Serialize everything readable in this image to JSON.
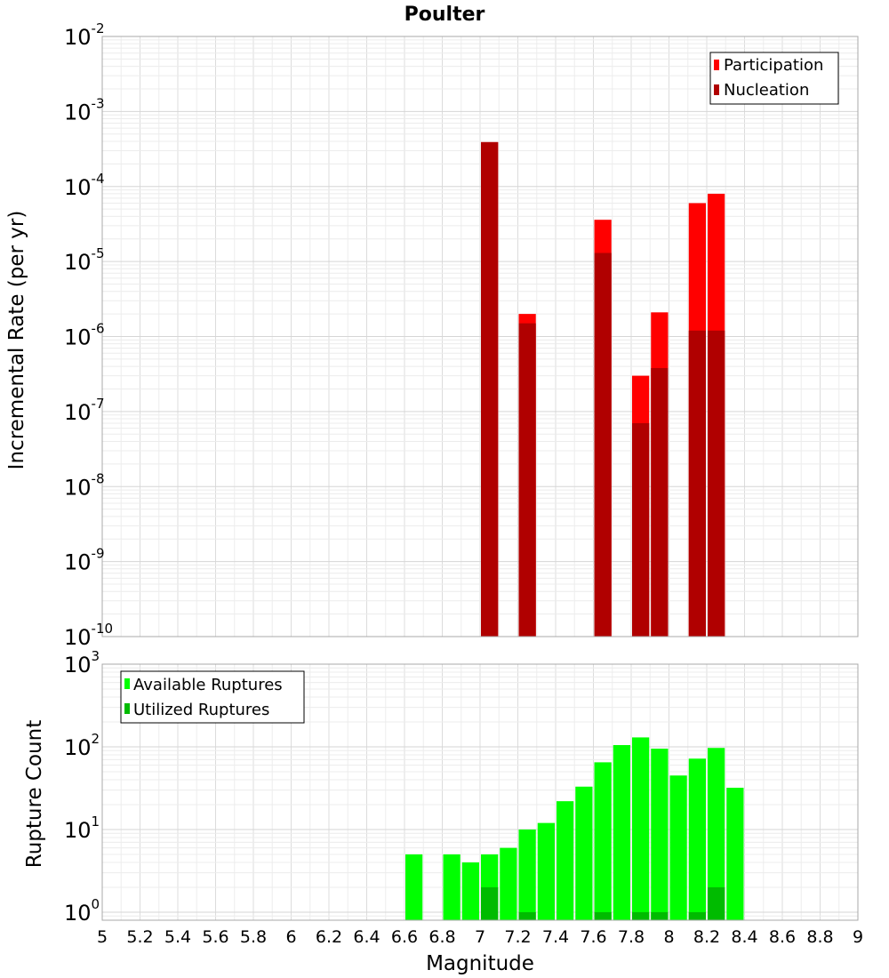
{
  "chart_data": [
    {
      "type": "bar",
      "title": "Poulter",
      "xlabel": "Magnitude",
      "ylabel": "Incremental Rate (per yr)",
      "yscale": "log",
      "xlim": [
        5,
        9
      ],
      "ylim": [
        1e-10,
        0.01
      ],
      "y_tick_labels": [
        "10^-10",
        "10^-9",
        "10^-8",
        "10^-7",
        "10^-6",
        "10^-5",
        "10^-4",
        "10^-3",
        "10^-2"
      ],
      "legend": {
        "position": "top-right",
        "entries": [
          "Participation",
          "Nucleation"
        ]
      },
      "series": [
        {
          "name": "Participation",
          "color": "#ff0000",
          "x": [
            7.05,
            7.25,
            7.65,
            7.85,
            7.95,
            8.15,
            8.25
          ],
          "values": [
            0.00039,
            2e-06,
            3.6e-05,
            3e-07,
            2.1e-06,
            6e-05,
            8e-05
          ]
        },
        {
          "name": "Nucleation",
          "color": "#b00000",
          "x": [
            7.05,
            7.25,
            7.65,
            7.85,
            7.95,
            8.15,
            8.25
          ],
          "values": [
            0.00039,
            1.5e-06,
            1.3e-05,
            7e-08,
            3.8e-07,
            1.2e-06,
            1.2e-06
          ]
        }
      ]
    },
    {
      "type": "bar",
      "title": "",
      "xlabel": "Magnitude",
      "ylabel": "Rupture Count",
      "yscale": "log",
      "xlim": [
        5,
        9
      ],
      "ylim": [
        0.8,
        1000
      ],
      "x_tick_labels": [
        "5",
        "5.2",
        "5.4",
        "5.6",
        "5.8",
        "6",
        "6.2",
        "6.4",
        "6.6",
        "6.8",
        "7",
        "7.2",
        "7.4",
        "7.6",
        "7.8",
        "8",
        "8.2",
        "8.4",
        "8.6",
        "8.8",
        "9"
      ],
      "y_tick_labels": [
        "10^0",
        "10^1",
        "10^2",
        "10^3"
      ],
      "legend": {
        "position": "top-left",
        "entries": [
          "Available Ruptures",
          "Utilized Ruptures"
        ]
      },
      "series": [
        {
          "name": "Available Ruptures",
          "color": "#00ff00",
          "x": [
            6.65,
            6.85,
            6.95,
            7.05,
            7.15,
            7.25,
            7.35,
            7.45,
            7.55,
            7.65,
            7.75,
            7.85,
            7.95,
            8.05,
            8.15,
            8.25,
            8.35
          ],
          "values": [
            5,
            5,
            4,
            5,
            6,
            10,
            12,
            22,
            33,
            65,
            105,
            130,
            95,
            45,
            72,
            97,
            32
          ]
        },
        {
          "name": "Utilized Ruptures",
          "color": "#00bb00",
          "x": [
            7.05,
            7.25,
            7.65,
            7.85,
            7.95,
            8.15,
            8.25
          ],
          "values": [
            2,
            1,
            1,
            1,
            1,
            1,
            2
          ]
        }
      ]
    }
  ]
}
